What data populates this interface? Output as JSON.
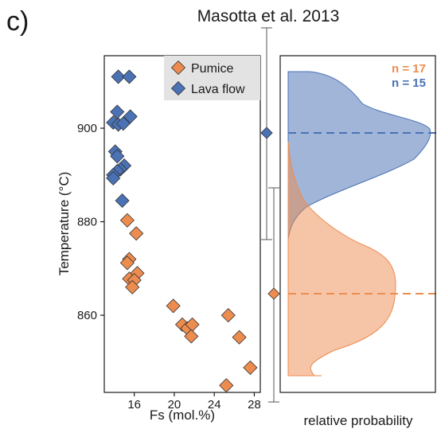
{
  "panel_label": "c)",
  "title": "Masotta et al. 2013",
  "colors": {
    "pumice": "#ed8c4f",
    "lava": "#4a72b5",
    "axis": "#1a1a1a",
    "legend_bg": "#e3e3e3"
  },
  "chart_data": [
    {
      "type": "scatter",
      "xlabel": "Fs (mol.%)",
      "ylabel": "Temperature (°C)",
      "xlim": [
        13,
        28.6
      ],
      "ylim": [
        843.5,
        915.5
      ],
      "xticks": [
        16,
        20,
        24,
        28
      ],
      "yticks": [
        860,
        880,
        900
      ],
      "grid": false,
      "legend_position": "top-right",
      "series": [
        {
          "name": "Pumice",
          "color": "#ed8c4f",
          "points": [
            [
              15.3,
              880.3
            ],
            [
              16.2,
              877.5
            ],
            [
              15.5,
              872.0
            ],
            [
              15.3,
              871.2
            ],
            [
              16.3,
              869.0
            ],
            [
              15.5,
              867.8
            ],
            [
              16.0,
              867.5
            ],
            [
              15.8,
              866.0
            ],
            [
              19.9,
              862.0
            ],
            [
              20.8,
              858.0
            ],
            [
              21.3,
              857.2
            ],
            [
              21.8,
              858.0
            ],
            [
              21.7,
              855.5
            ],
            [
              25.4,
              860.0
            ],
            [
              26.5,
              855.3
            ],
            [
              27.6,
              848.8
            ],
            [
              25.2,
              845.0
            ]
          ]
        },
        {
          "name": "Lava flow",
          "color": "#4a72b5",
          "points": [
            [
              14.4,
              911.0
            ],
            [
              15.5,
              911.0
            ],
            [
              14.3,
              903.5
            ],
            [
              15.6,
              902.5
            ],
            [
              13.9,
              901.2
            ],
            [
              14.4,
              900.8
            ],
            [
              14.9,
              901.0
            ],
            [
              14.1,
              895.0
            ],
            [
              14.3,
              894.0
            ],
            [
              15.0,
              892.0
            ],
            [
              14.6,
              891.2
            ],
            [
              14.3,
              890.8
            ],
            [
              13.9,
              890.0
            ],
            [
              13.9,
              889.3
            ],
            [
              14.8,
              884.5
            ]
          ]
        }
      ]
    },
    {
      "type": "area",
      "xlabel": "relative probability",
      "ylabel": "",
      "series": [
        {
          "name": "Lava flow",
          "n_label": "n = 15",
          "mean_temperature": 897.5,
          "color": "#4a72b5"
        },
        {
          "name": "Pumice",
          "n_label": "n = 17",
          "mean_temperature": 863.0,
          "color": "#ed8c4f"
        }
      ]
    }
  ]
}
